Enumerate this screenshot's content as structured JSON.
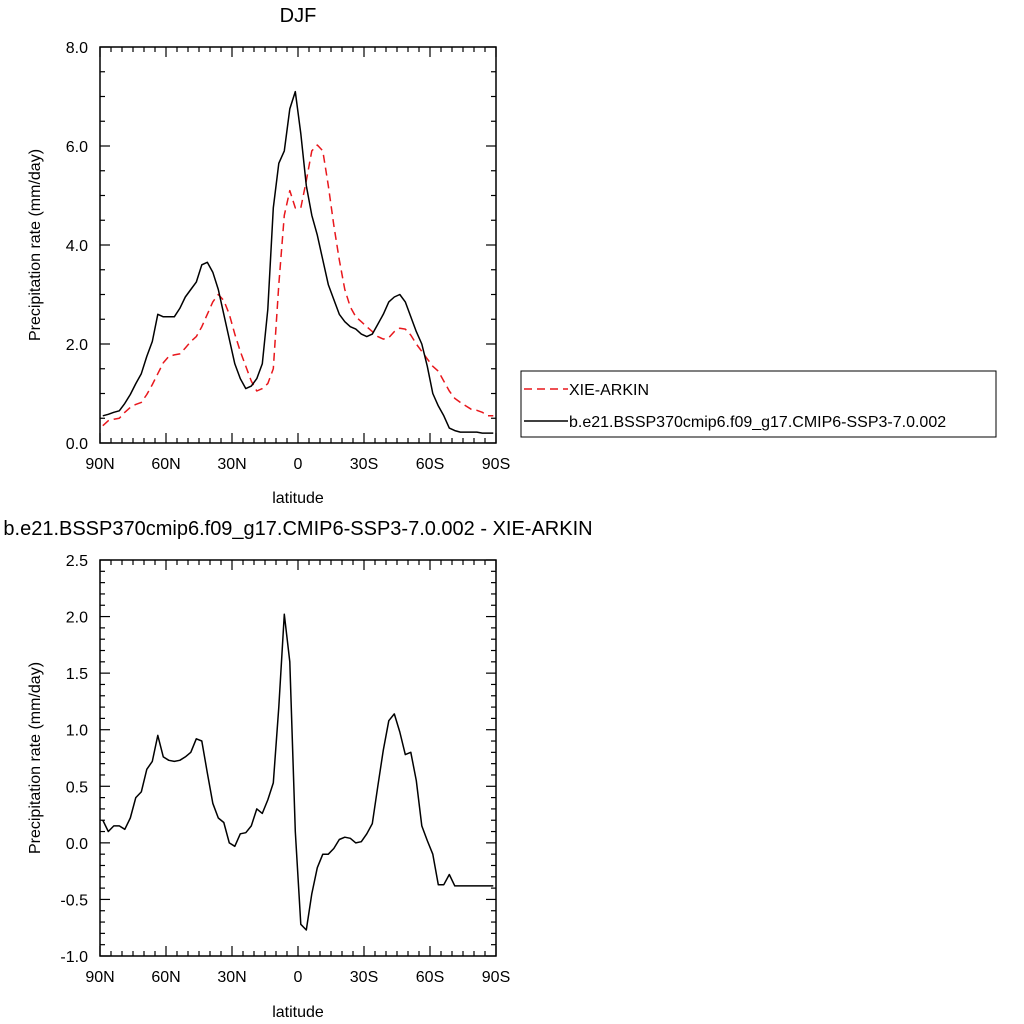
{
  "chart_data": [
    {
      "type": "line",
      "title": "DJF",
      "xlabel": "latitude",
      "ylabel": "Precipitation rate (mm/day)",
      "xlim": [
        90,
        -90
      ],
      "ylim": [
        0,
        8
      ],
      "xticks": [
        90,
        60,
        30,
        0,
        -30,
        -60,
        -90
      ],
      "xtick_labels": [
        "90N",
        "60N",
        "30N",
        "0",
        "30S",
        "60S",
        "90S"
      ],
      "yticks": [
        0,
        2,
        4,
        6,
        8
      ],
      "ytick_labels": [
        "0.0",
        "2.0",
        "4.0",
        "6.0",
        "8.0"
      ],
      "grid": false,
      "legend": "right",
      "series": [
        {
          "name": "XIE-ARKIN",
          "style": "dashed",
          "color": "#e8171c",
          "x": [
            88.75,
            86.25,
            83.75,
            81.25,
            78.75,
            76.25,
            73.75,
            71.25,
            68.75,
            66.25,
            63.75,
            61.25,
            58.75,
            56.25,
            53.75,
            51.25,
            48.75,
            46.25,
            43.75,
            41.25,
            38.75,
            36.25,
            33.75,
            31.25,
            28.75,
            26.25,
            23.75,
            21.25,
            18.75,
            16.25,
            13.75,
            11.25,
            8.75,
            6.25,
            3.75,
            1.25,
            -1.25,
            -3.75,
            -6.25,
            -8.75,
            -11.25,
            -13.75,
            -16.25,
            -18.75,
            -21.25,
            -23.75,
            -26.25,
            -28.75,
            -31.25,
            -33.75,
            -36.25,
            -38.75,
            -41.25,
            -43.75,
            -46.25,
            -48.75,
            -51.25,
            -53.75,
            -56.25,
            -58.75,
            -61.25,
            -63.75,
            -66.25,
            -68.75,
            -71.25,
            -73.75,
            -76.25,
            -78.75,
            -81.25,
            -83.75,
            -86.25,
            -88.75
          ],
          "values": [
            0.35,
            0.45,
            0.48,
            0.5,
            0.62,
            0.72,
            0.78,
            0.82,
            0.98,
            1.18,
            1.4,
            1.62,
            1.75,
            1.78,
            1.8,
            1.92,
            2.05,
            2.15,
            2.35,
            2.6,
            2.85,
            3.0,
            2.88,
            2.6,
            2.2,
            1.85,
            1.55,
            1.25,
            1.05,
            1.1,
            1.2,
            1.5,
            3.2,
            4.6,
            5.1,
            4.75,
            4.75,
            5.3,
            5.9,
            6.02,
            5.9,
            5.2,
            4.4,
            3.7,
            3.1,
            2.75,
            2.55,
            2.45,
            2.35,
            2.25,
            2.15,
            2.1,
            2.13,
            2.25,
            2.32,
            2.3,
            2.18,
            2.0,
            1.85,
            1.7,
            1.55,
            1.45,
            1.25,
            1.05,
            0.9,
            0.82,
            0.75,
            0.68,
            0.66,
            0.62,
            0.55,
            0.55
          ]
        },
        {
          "name": "b.e21.BSSP370cmip6.f09_g17.CMIP6-SSP3-7.0.002",
          "style": "solid",
          "color": "#000000",
          "x": [
            88.75,
            86.25,
            83.75,
            81.25,
            78.75,
            76.25,
            73.75,
            71.25,
            68.75,
            66.25,
            63.75,
            61.25,
            58.75,
            56.25,
            53.75,
            51.25,
            48.75,
            46.25,
            43.75,
            41.25,
            38.75,
            36.25,
            33.75,
            31.25,
            28.75,
            26.25,
            23.75,
            21.25,
            18.75,
            16.25,
            13.75,
            11.25,
            8.75,
            6.25,
            3.75,
            1.25,
            -1.25,
            -3.75,
            -6.25,
            -8.75,
            -11.25,
            -13.75,
            -16.25,
            -18.75,
            -21.25,
            -23.75,
            -26.25,
            -28.75,
            -31.25,
            -33.75,
            -36.25,
            -38.75,
            -41.25,
            -43.75,
            -46.25,
            -48.75,
            -51.25,
            -53.75,
            -56.25,
            -58.75,
            -61.25,
            -63.75,
            -66.25,
            -68.75,
            -71.25,
            -73.75,
            -76.25,
            -78.75,
            -81.25,
            -83.75,
            -86.25,
            -88.75
          ],
          "values": [
            0.55,
            0.58,
            0.62,
            0.65,
            0.8,
            0.98,
            1.2,
            1.4,
            1.75,
            2.05,
            2.6,
            2.55,
            2.55,
            2.55,
            2.72,
            2.95,
            3.1,
            3.25,
            3.6,
            3.65,
            3.45,
            3.1,
            2.6,
            2.1,
            1.6,
            1.3,
            1.1,
            1.15,
            1.3,
            1.6,
            2.7,
            4.75,
            5.65,
            5.9,
            6.75,
            7.1,
            6.25,
            5.2,
            4.6,
            4.2,
            3.7,
            3.2,
            2.9,
            2.6,
            2.45,
            2.35,
            2.3,
            2.2,
            2.15,
            2.2,
            2.4,
            2.6,
            2.85,
            2.95,
            3.0,
            2.85,
            2.55,
            2.25,
            2.0,
            1.55,
            1.0,
            0.75,
            0.55,
            0.3,
            0.25,
            0.22,
            0.22,
            0.22,
            0.22,
            0.2,
            0.2,
            0.2
          ]
        }
      ]
    },
    {
      "type": "line",
      "title": "b.e21.BSSP370cmip6.f09_g17.CMIP6-SSP3-7.0.002 - XIE-ARKIN",
      "xlabel": "latitude",
      "ylabel": "Precipitation rate (mm/day)",
      "xlim": [
        90,
        -90
      ],
      "ylim": [
        -1,
        2.5
      ],
      "xticks": [
        90,
        60,
        30,
        0,
        -30,
        -60,
        -90
      ],
      "xtick_labels": [
        "90N",
        "60N",
        "30N",
        "0",
        "30S",
        "60S",
        "90S"
      ],
      "yticks": [
        -1,
        -0.5,
        0,
        0.5,
        1,
        1.5,
        2,
        2.5
      ],
      "ytick_labels": [
        "-1.0",
        "-0.5",
        "0.0",
        "0.5",
        "1.0",
        "1.5",
        "2.0",
        "2.5"
      ],
      "grid": false,
      "series": [
        {
          "style": "solid",
          "color": "#000000",
          "x": [
            88.75,
            86.25,
            83.75,
            81.25,
            78.75,
            76.25,
            73.75,
            71.25,
            68.75,
            66.25,
            63.75,
            61.25,
            58.75,
            56.25,
            53.75,
            51.25,
            48.75,
            46.25,
            43.75,
            41.25,
            38.75,
            36.25,
            33.75,
            31.25,
            28.75,
            26.25,
            23.75,
            21.25,
            18.75,
            16.25,
            13.75,
            11.25,
            8.75,
            6.25,
            3.75,
            1.25,
            -1.25,
            -3.75,
            -6.25,
            -8.75,
            -11.25,
            -13.75,
            -16.25,
            -18.75,
            -21.25,
            -23.75,
            -26.25,
            -28.75,
            -31.25,
            -33.75,
            -36.25,
            -38.75,
            -41.25,
            -43.75,
            -46.25,
            -48.75,
            -51.25,
            -53.75,
            -56.25,
            -58.75,
            -61.25,
            -63.75,
            -66.25,
            -68.75,
            -71.25,
            -73.75,
            -76.25,
            -78.75,
            -81.25,
            -83.75,
            -86.25,
            -88.75
          ],
          "values": [
            0.2,
            0.1,
            0.15,
            0.15,
            0.12,
            0.22,
            0.4,
            0.45,
            0.65,
            0.72,
            0.95,
            0.76,
            0.73,
            0.72,
            0.73,
            0.76,
            0.8,
            0.92,
            0.9,
            0.62,
            0.35,
            0.22,
            0.18,
            0.0,
            -0.03,
            0.08,
            0.09,
            0.15,
            0.3,
            0.26,
            0.38,
            0.53,
            1.2,
            2.02,
            1.6,
            0.1,
            -0.72,
            -0.77,
            -0.45,
            -0.22,
            -0.1,
            -0.1,
            -0.05,
            0.03,
            0.05,
            0.04,
            0.0,
            0.01,
            0.08,
            0.17,
            0.5,
            0.82,
            1.08,
            1.14,
            0.98,
            0.78,
            0.8,
            0.55,
            0.15,
            0.02,
            -0.1,
            -0.37,
            -0.37,
            -0.28,
            -0.38,
            -0.38,
            -0.38,
            -0.38,
            -0.38,
            -0.38,
            -0.38,
            -0.38
          ]
        }
      ]
    }
  ]
}
